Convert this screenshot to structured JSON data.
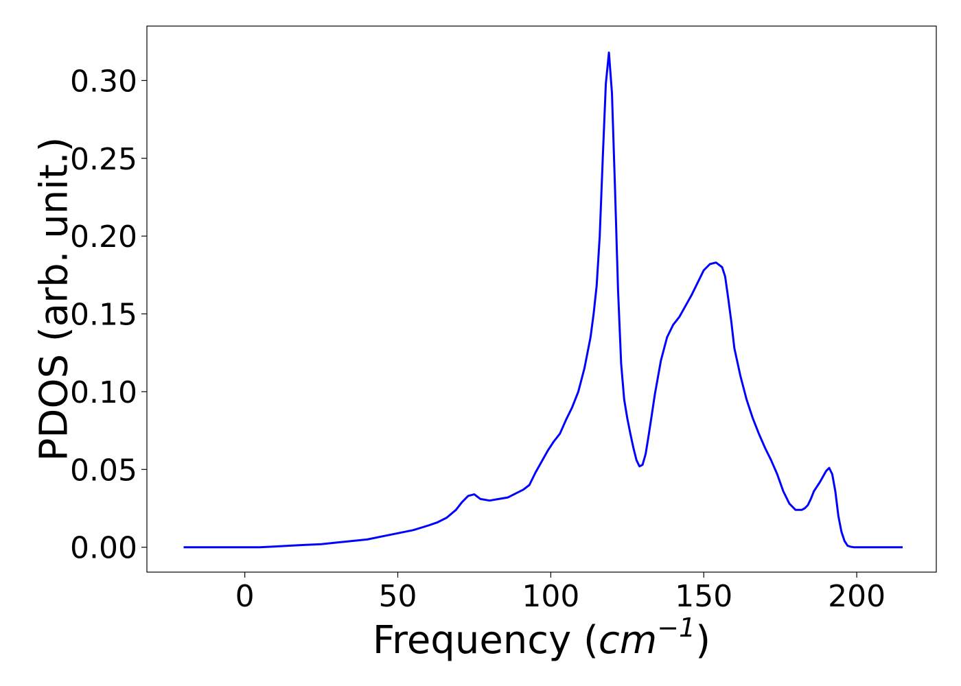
{
  "chart_data": {
    "type": "line",
    "title": "",
    "xlabel_main": "Frequency (",
    "xlabel_math": "cm",
    "xlabel_sup": "−1",
    "xlabel_end": ")",
    "ylabel": "PDOS (arb. unit.)",
    "xlim": [
      -32,
      226
    ],
    "ylim": [
      -0.016,
      0.335
    ],
    "grid": false,
    "legend": "none",
    "x_ticks": [
      {
        "value": 0,
        "label": "0"
      },
      {
        "value": 50,
        "label": "50"
      },
      {
        "value": 100,
        "label": "100"
      },
      {
        "value": 150,
        "label": "150"
      },
      {
        "value": 200,
        "label": "200"
      }
    ],
    "y_ticks": [
      {
        "value": 0.0,
        "label": "0.00"
      },
      {
        "value": 0.05,
        "label": "0.05"
      },
      {
        "value": 0.1,
        "label": "0.10"
      },
      {
        "value": 0.15,
        "label": "0.15"
      },
      {
        "value": 0.2,
        "label": "0.20"
      },
      {
        "value": 0.25,
        "label": "0.25"
      },
      {
        "value": 0.3,
        "label": "0.30"
      }
    ],
    "series": [
      {
        "color": "#0000ff",
        "x": [
          -20,
          -10,
          0,
          5,
          10,
          15,
          20,
          25,
          30,
          35,
          40,
          45,
          50,
          55,
          60,
          63,
          66,
          69,
          71,
          73,
          75,
          77,
          80,
          83,
          86,
          89,
          91,
          93,
          95,
          97,
          99,
          101,
          103,
          105,
          107,
          109,
          111,
          113,
          114,
          115,
          116,
          117,
          118,
          119,
          120,
          121,
          122,
          123,
          124,
          125,
          126,
          127,
          128,
          129,
          130,
          131,
          132,
          133,
          134,
          136,
          138,
          140,
          142,
          144,
          146,
          148,
          150,
          152,
          154,
          156,
          157,
          158,
          159,
          160,
          162,
          164,
          166,
          168,
          170,
          172,
          174,
          176,
          178,
          180,
          182,
          183,
          184,
          185,
          186,
          188,
          190,
          191,
          192,
          193,
          194,
          195,
          196,
          197,
          198,
          199,
          200,
          202,
          205,
          210,
          215
        ],
        "y": [
          0.0,
          0.0,
          0.0,
          0.0,
          0.0005,
          0.001,
          0.0015,
          0.002,
          0.003,
          0.004,
          0.005,
          0.007,
          0.009,
          0.011,
          0.014,
          0.016,
          0.019,
          0.024,
          0.029,
          0.033,
          0.034,
          0.031,
          0.03,
          0.031,
          0.032,
          0.035,
          0.037,
          0.04,
          0.048,
          0.055,
          0.062,
          0.068,
          0.073,
          0.082,
          0.09,
          0.1,
          0.115,
          0.135,
          0.15,
          0.168,
          0.2,
          0.25,
          0.298,
          0.318,
          0.292,
          0.23,
          0.165,
          0.118,
          0.095,
          0.083,
          0.073,
          0.064,
          0.056,
          0.052,
          0.053,
          0.06,
          0.072,
          0.085,
          0.098,
          0.12,
          0.135,
          0.143,
          0.148,
          0.155,
          0.162,
          0.17,
          0.178,
          0.182,
          0.183,
          0.18,
          0.174,
          0.16,
          0.145,
          0.128,
          0.11,
          0.095,
          0.083,
          0.073,
          0.064,
          0.056,
          0.047,
          0.036,
          0.028,
          0.024,
          0.024,
          0.025,
          0.027,
          0.031,
          0.036,
          0.042,
          0.049,
          0.051,
          0.047,
          0.036,
          0.02,
          0.01,
          0.004,
          0.001,
          0.0003,
          0.0,
          0.0,
          0.0,
          0.0,
          0.0,
          0.0
        ]
      }
    ]
  }
}
